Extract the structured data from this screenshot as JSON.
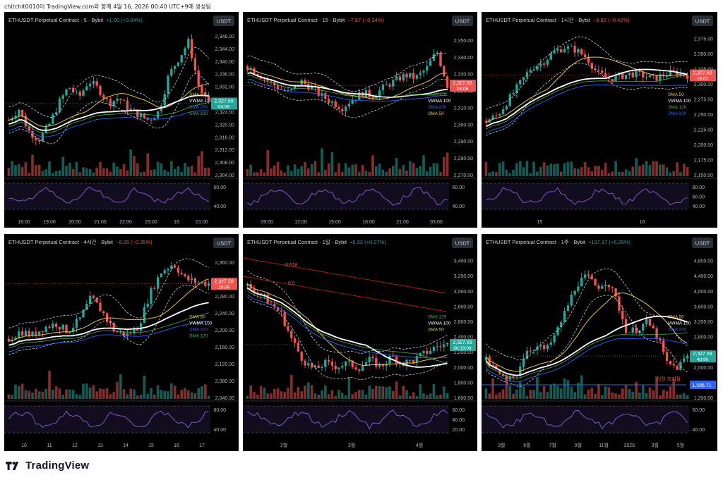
{
  "header": {
    "text": "chitchit0010이 TradingView.com와 함께 4월 16, 2026 00:40 UTC+9에 생성됨"
  },
  "footer": {
    "brand": "TradingView"
  },
  "colors": {
    "bg": "#000000",
    "up": "#26a69a",
    "down": "#ef5350",
    "sma50": "#e6c34a",
    "sma120": "#4caf50",
    "sma200": "#2962ff",
    "vwma": "#ffffff",
    "rsi": "#7e57c2"
  },
  "chart_data": [
    {
      "type": "candlestick",
      "symbol": "ETHUSDT Perpetual Contract",
      "interval": "5",
      "exchange": "Bybit",
      "change": "+1.00 (+0.04%)",
      "change_dir": "up",
      "currency": "USDT",
      "price_ticks": [
        "2,352.00",
        "2,348.00",
        "2,344.00",
        "2,340.00",
        "2,336.00",
        "2,332.00",
        "2,328.00",
        "2,324.00",
        "2,320.00",
        "2,316.00",
        "2,312.00",
        "2,308.00",
        "2,304.00"
      ],
      "time_ticks": [
        "18:00",
        "19:00",
        "20:00",
        "21:00",
        "22:00",
        "23:00",
        "16",
        "01:00"
      ],
      "ma_labels": [
        "SMA 50",
        "VWMA 100",
        "SMA 200",
        "SMA 120"
      ],
      "last_price": "2,327.59",
      "countdown": "04:08",
      "rsi_ticks": [
        "60.00",
        "40.00"
      ],
      "trend": [
        2322,
        2326,
        2318,
        2315,
        2320,
        2328,
        2334,
        2330,
        2336,
        2333,
        2328,
        2330,
        2326,
        2324,
        2322,
        2325,
        2338,
        2344,
        2350,
        2334,
        2328
      ],
      "ylim": [
        2302,
        2354
      ]
    },
    {
      "type": "candlestick",
      "symbol": "ETHUSDT Perpetual Contract",
      "interval": "15",
      "exchange": "Bybit",
      "change": "−7.87 (−0.34%)",
      "change_dir": "down",
      "currency": "USDT",
      "price_ticks": [
        "2,360.00",
        "2,350.00",
        "2,340.00",
        "2,330.00",
        "2,320.00",
        "2,310.00",
        "2,300.00",
        "2,290.00",
        "2,280.00",
        "2,270.00"
      ],
      "time_ticks": [
        "09:00",
        "12:00",
        "15:00",
        "18:00",
        "21:00",
        "03:00"
      ],
      "ma_labels": [
        "SMA 120",
        "VWMA 100",
        "SMA 200",
        "SMA 50"
      ],
      "last_price": "2,327.59",
      "countdown": "04:08",
      "rsi_ticks": [
        "60.00",
        "40.00"
      ],
      "trend": [
        2340,
        2335,
        2330,
        2325,
        2322,
        2330,
        2326,
        2320,
        2316,
        2312,
        2318,
        2322,
        2320,
        2326,
        2330,
        2334,
        2332,
        2338,
        2350,
        2327
      ],
      "ylim": [
        2266,
        2364
      ]
    },
    {
      "type": "candlestick",
      "symbol": "ETHUSDT Perpetual Contract",
      "interval": "1시간",
      "exchange": "Bybit",
      "change": "−9.82 (−0.42%)",
      "change_dir": "down",
      "currency": "USDT",
      "price_ticks": [
        "2,400.00",
        "2,375.00",
        "2,350.00",
        "2,325.00",
        "2,300.00",
        "2,275.00",
        "2,250.00",
        "2,225.00",
        "2,200.00",
        "2,175.00",
        "2,150.00"
      ],
      "time_ticks": [
        "15",
        "16"
      ],
      "ma_labels": [
        "SMA 50",
        "VWMA 100",
        "SMA 120",
        "SMA 200"
      ],
      "last_price": "2,327.59",
      "countdown": "19:07",
      "rsi_ticks": [
        "80.00",
        "60.00",
        "40.00"
      ],
      "trend": [
        2240,
        2250,
        2280,
        2310,
        2340,
        2350,
        2370,
        2380,
        2375,
        2360,
        2330,
        2320,
        2325,
        2330,
        2326,
        2320,
        2328,
        2332,
        2327
      ],
      "ylim": [
        2135,
        2412
      ]
    },
    {
      "type": "candlestick",
      "symbol": "ETHUSDT Perpetual Contract",
      "interval": "4시간",
      "exchange": "Bybit",
      "change": "−8.26 (−0.35%)",
      "change_dir": "down",
      "currency": "USDT",
      "price_ticks": [
        "2,400.00",
        "2,360.00",
        "2,320.00",
        "2,280.00",
        "2,240.00",
        "2,200.00",
        "2,160.00",
        "2,120.00",
        "2,080.00",
        "2,040.00"
      ],
      "time_ticks": [
        "10",
        "11",
        "12",
        "13",
        "14",
        "15",
        "16",
        "17"
      ],
      "ma_labels": [
        "SMA 50",
        "VWMA 100",
        "SMA 200",
        "SMA 120"
      ],
      "last_price": "2,327.59",
      "countdown": "19:08",
      "rsi_ticks": [
        "60.00",
        "40.00"
      ],
      "trend": [
        2180,
        2200,
        2190,
        2210,
        2220,
        2200,
        2230,
        2290,
        2250,
        2200,
        2190,
        2210,
        2300,
        2360,
        2380,
        2340,
        2330,
        2327
      ],
      "ylim": [
        2020,
        2410
      ]
    },
    {
      "type": "candlestick",
      "symbol": "ETHUSDT Perpetual Contract",
      "interval": "1일",
      "exchange": "Bybit",
      "change": "+6.32 (+0.27%)",
      "change_dir": "up",
      "currency": "USDT",
      "price_ticks": [
        "3,600.00",
        "3,400.00",
        "3,200.00",
        "3,000.00",
        "2,800.00",
        "2,600.00",
        "2,400.00",
        "2,200.00",
        "2,000.00",
        "1,800.00",
        "1,600.00"
      ],
      "time_ticks": [
        "2월",
        "3월",
        "4월"
      ],
      "ma_labels": [
        "SMA 120",
        "VWMA 100",
        "SMA 50"
      ],
      "fib_labels": [
        "0.618",
        "0.5"
      ],
      "last_price": "2,327.59",
      "countdown": "08:19:08",
      "rsi_ticks": [
        "60.00",
        "40.00",
        "20.00"
      ],
      "trend": [
        3200,
        3100,
        2950,
        2800,
        2400,
        2100,
        1950,
        2050,
        2000,
        2050,
        1980,
        2100,
        2000,
        2150,
        2050,
        2100,
        2200,
        2300,
        2327
      ],
      "ylim": [
        1520,
        3700
      ]
    },
    {
      "type": "candlestick",
      "symbol": "ETHUSDT Perpetual Contract",
      "interval": "1주",
      "exchange": "Bybit",
      "change": "+137.17 (+6.26%)",
      "change_dir": "up",
      "currency": "USDT",
      "price_ticks": [
        "5,200.00",
        "4,800.00",
        "4,400.00",
        "4,000.00",
        "3,600.00",
        "3,200.00",
        "2,800.00",
        "2,400.00",
        "2,000.00",
        "1,600.00",
        "1,200.00"
      ],
      "time_ticks": [
        "3월",
        "5월",
        "7월",
        "9월",
        "11월",
        "2026",
        "3월",
        "5월"
      ],
      "ma_labels": [
        "SMA 50",
        "VWMA 100",
        "SMA 200"
      ],
      "last_price": "2,327.59",
      "countdown": "4d 9h",
      "low_price": "1,586.71",
      "low_label": "이전 최저점",
      "rsi_ticks": [
        "60.00",
        "40.00"
      ],
      "trend": [
        2200,
        1900,
        1600,
        1800,
        2500,
        2600,
        2500,
        3000,
        3700,
        4400,
        4600,
        4300,
        4500,
        3900,
        3000,
        3100,
        3300,
        2900,
        2100,
        2000,
        2327
      ],
      "ylim": [
        1100,
        5300
      ]
    }
  ]
}
